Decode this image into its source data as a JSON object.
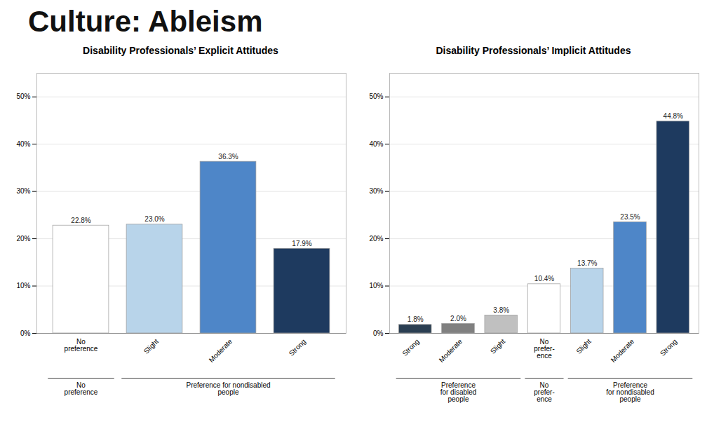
{
  "title": "Culture: Ableism",
  "chart_data": [
    {
      "type": "bar",
      "title": "Disability Professionals’ Explicit Attitudes",
      "categories": [
        "No\npreference",
        "Slight",
        "Moderate",
        "Strong"
      ],
      "values": [
        22.8,
        23.0,
        36.3,
        17.9
      ],
      "value_labels": [
        "22.8%",
        "23.0%",
        "36.3%",
        "17.9%"
      ],
      "colors": [
        "#ffffff",
        "#b8d4ea",
        "#4e86c8",
        "#1e3a5f"
      ],
      "ylim": [
        0,
        55
      ],
      "yticks": [
        {
          "value": 0,
          "label": "0%"
        },
        {
          "value": 10,
          "label": "10%"
        },
        {
          "value": 20,
          "label": "20%"
        },
        {
          "value": 30,
          "label": "30%"
        },
        {
          "value": 40,
          "label": "40%"
        },
        {
          "value": 50,
          "label": "50%"
        }
      ],
      "grid": true,
      "data_labels": true,
      "annotations": [
        {
          "text": "No\npreference",
          "start": 0,
          "end": 0
        },
        {
          "text": "Preference for nondisabled\npeople",
          "start": 1,
          "end": 3
        }
      ]
    },
    {
      "type": "bar",
      "title": "Disability Professionals’ Implicit Attitudes",
      "categories": [
        "Strong",
        "Moderate",
        "Slight",
        "No\nprefer-\nence",
        "Slight",
        "Moderate",
        "Strong"
      ],
      "values": [
        1.8,
        2.0,
        3.8,
        10.4,
        13.7,
        23.5,
        44.8
      ],
      "value_labels": [
        "1.8%",
        "2.0%",
        "3.8%",
        "10.4%",
        "13.7%",
        "23.5%",
        "44.8%"
      ],
      "colors": [
        "#2b3f52",
        "#808080",
        "#c0c0c0",
        "#ffffff",
        "#b8d4ea",
        "#4e86c8",
        "#1e3a5f"
      ],
      "ylim": [
        0,
        55
      ],
      "yticks": [
        {
          "value": 0,
          "label": "0%"
        },
        {
          "value": 10,
          "label": "10%"
        },
        {
          "value": 20,
          "label": "20%"
        },
        {
          "value": 30,
          "label": "30%"
        },
        {
          "value": 40,
          "label": "40%"
        },
        {
          "value": 50,
          "label": "50%"
        }
      ],
      "grid": true,
      "data_labels": true,
      "annotations": [
        {
          "text": "Preference\nfor disabled\npeople",
          "start": 0,
          "end": 2
        },
        {
          "text": "No\nprefer-\nence",
          "start": 3,
          "end": 3
        },
        {
          "text": "Preference\nfor nondisabled\npeople",
          "start": 4,
          "end": 6
        }
      ]
    }
  ]
}
